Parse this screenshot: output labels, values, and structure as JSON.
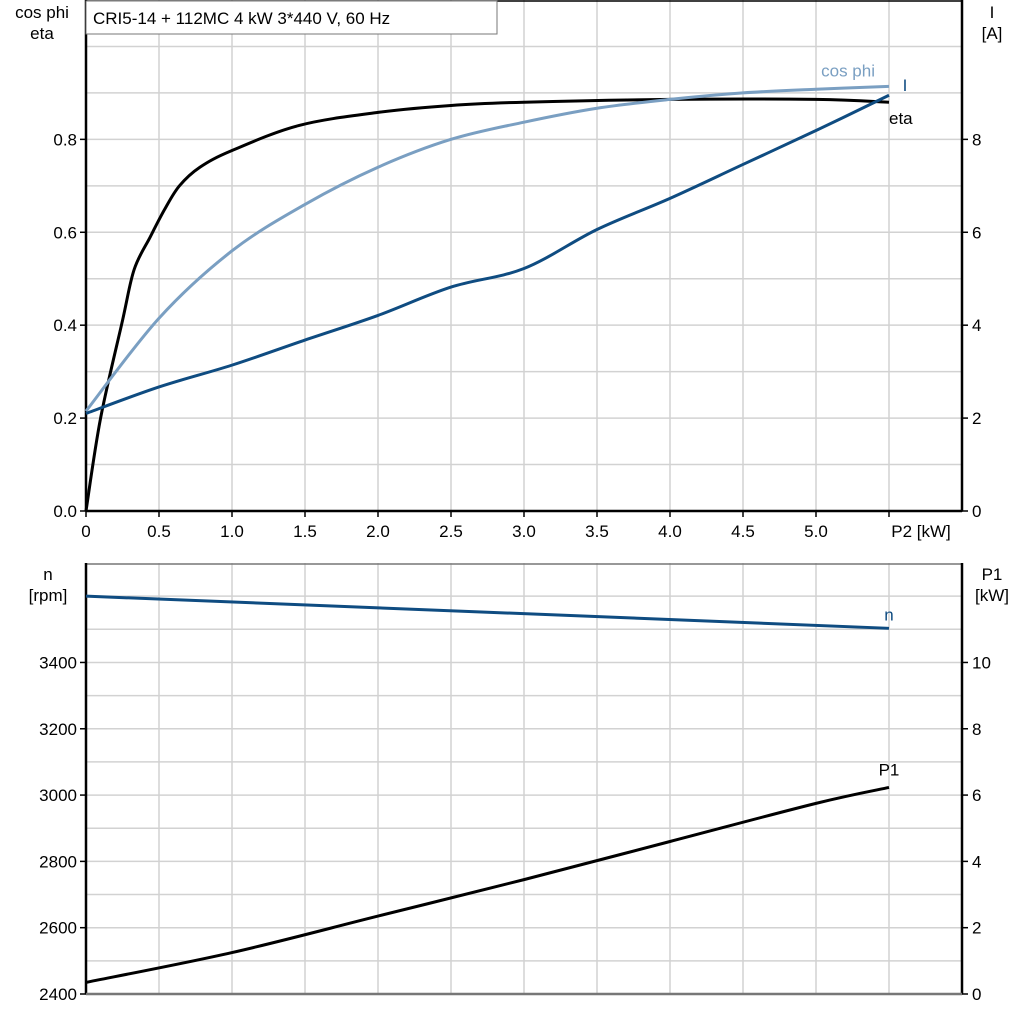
{
  "chart_data": [
    {
      "type": "line",
      "title": "CRI5-14 + 112MC   4 kW   3*440 V, 60 Hz",
      "xlabel": "P2 [kW]",
      "ylabel_left": [
        "cos phi",
        "eta"
      ],
      "ylabel_right": [
        "I",
        "[A]"
      ],
      "xlim": [
        0,
        6
      ],
      "ylim_left": [
        0,
        1.1
      ],
      "ylim_right": [
        0,
        11
      ],
      "x_ticks": [
        "0",
        "0.5",
        "1.0",
        "1.5",
        "2.0",
        "2.5",
        "3.0",
        "3.5",
        "4.0",
        "4.5",
        "5.0"
      ],
      "y_ticks_left": [
        "0.0",
        "0.2",
        "0.4",
        "0.6",
        "0.8"
      ],
      "y_ticks_right": [
        "0",
        "2",
        "4",
        "6",
        "8"
      ],
      "grid": true,
      "series": [
        {
          "name": "eta",
          "axis": "left",
          "color": "#000000",
          "x": [
            0,
            0.1,
            0.25,
            0.33,
            0.44,
            0.54,
            0.64,
            0.78,
            1.0,
            1.46,
            2.0,
            2.5,
            3.0,
            4.0,
            5.0,
            5.5
          ],
          "y": [
            0,
            0.2,
            0.41,
            0.52,
            0.59,
            0.65,
            0.7,
            0.74,
            0.776,
            0.83,
            0.858,
            0.873,
            0.88,
            0.886,
            0.886,
            0.88
          ]
        },
        {
          "name": "cos phi",
          "axis": "left",
          "color": "#7a9fc2",
          "x": [
            0,
            0.5,
            1.0,
            1.5,
            2.0,
            2.5,
            3.0,
            3.5,
            4.0,
            4.5,
            5.0,
            5.5
          ],
          "y": [
            0.215,
            0.415,
            0.56,
            0.66,
            0.74,
            0.8,
            0.837,
            0.867,
            0.886,
            0.9,
            0.908,
            0.914
          ]
        },
        {
          "name": "I",
          "axis": "right",
          "color": "#0f4c81",
          "x": [
            0,
            0.5,
            1.0,
            1.5,
            2.0,
            2.5,
            3.0,
            3.5,
            4.0,
            4.5,
            5.0,
            5.5
          ],
          "y": [
            2.1,
            2.67,
            3.14,
            3.68,
            4.21,
            4.82,
            5.22,
            6.06,
            6.73,
            7.46,
            8.19,
            8.95
          ]
        }
      ]
    },
    {
      "type": "line",
      "ylabel_left": [
        "n",
        "[rpm]"
      ],
      "ylabel_right": [
        "P1",
        "[kW]"
      ],
      "xlim": [
        0,
        6
      ],
      "ylim_left": [
        2400,
        3700
      ],
      "ylim_right": [
        0,
        13
      ],
      "y_ticks_left": [
        "2400",
        "2600",
        "2800",
        "3000",
        "3200",
        "3400"
      ],
      "y_ticks_right": [
        "0",
        "2",
        "4",
        "6",
        "8",
        "10"
      ],
      "grid": true,
      "series": [
        {
          "name": "n",
          "axis": "left",
          "color": "#0f4c81",
          "x": [
            0,
            5.5
          ],
          "y": [
            3600,
            3503
          ]
        },
        {
          "name": "P1",
          "axis": "right",
          "color": "#000000",
          "x": [
            0,
            1.0,
            2.0,
            3.0,
            4.0,
            5.0,
            5.5
          ],
          "y": [
            0.35,
            1.25,
            2.35,
            3.45,
            4.6,
            5.75,
            6.23
          ]
        }
      ]
    }
  ]
}
